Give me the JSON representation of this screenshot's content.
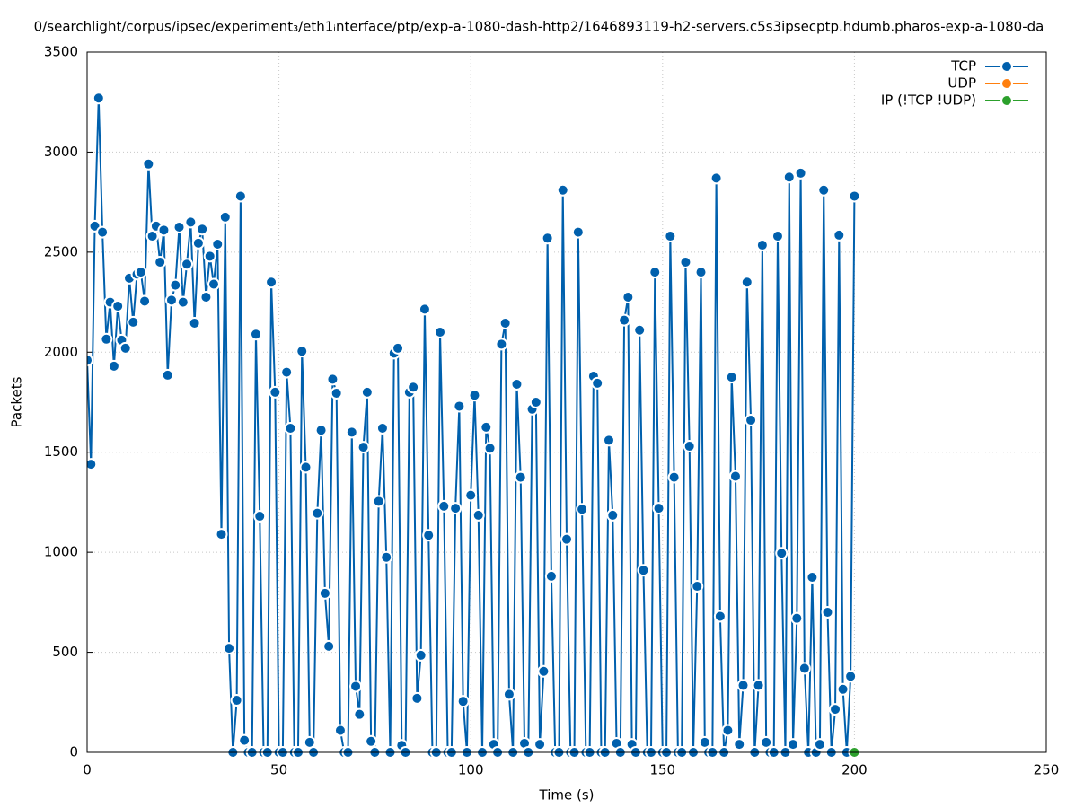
{
  "chart_data": {
    "type": "line",
    "title": "0/searchlight/corpus/ipsec/experiment₃/eth1ᵢnterface/ptp/exp-a-1080-dash-http2/1646893119-h2-servers.c5s3ipsecptp.hdumb.pharos-exp-a-1080-da",
    "x_label": "Time (s)",
    "y_label": "Packets",
    "xlim": [
      0,
      250
    ],
    "xticks": [
      0,
      50,
      100,
      150,
      200,
      250
    ],
    "ylim": [
      0,
      3500
    ],
    "yticks": [
      0,
      500,
      1000,
      1500,
      2000,
      2500,
      3000,
      3500
    ],
    "grid": true,
    "legend": "top-right",
    "series": [
      {
        "name": "TCP",
        "color": "#0060ad",
        "x": [
          0,
          1,
          2,
          3,
          4,
          5,
          6,
          7,
          8,
          9,
          10,
          11,
          12,
          13,
          14,
          15,
          16,
          17,
          18,
          19,
          20,
          21,
          22,
          23,
          24,
          25,
          26,
          27,
          28,
          29,
          30,
          31,
          32,
          33,
          34,
          35,
          36,
          37,
          38,
          39,
          40,
          41,
          42,
          43,
          44,
          45,
          46,
          47,
          48,
          49,
          50,
          51,
          52,
          53,
          54,
          55,
          56,
          57,
          58,
          59,
          60,
          61,
          62,
          63,
          64,
          65,
          66,
          67,
          68,
          69,
          70,
          71,
          72,
          73,
          74,
          75,
          76,
          77,
          78,
          79,
          80,
          81,
          82,
          83,
          84,
          85,
          86,
          87,
          88,
          89,
          90,
          91,
          92,
          93,
          94,
          95,
          96,
          97,
          98,
          99,
          100,
          101,
          102,
          103,
          104,
          105,
          106,
          107,
          108,
          109,
          110,
          111,
          112,
          113,
          114,
          115,
          116,
          117,
          118,
          119,
          120,
          121,
          122,
          123,
          124,
          125,
          126,
          127,
          128,
          129,
          130,
          131,
          132,
          133,
          134,
          135,
          136,
          137,
          138,
          139,
          140,
          141,
          142,
          143,
          144,
          145,
          146,
          147,
          148,
          149,
          150,
          151,
          152,
          153,
          154,
          155,
          156,
          157,
          158,
          159,
          160,
          161,
          162,
          163,
          164,
          165,
          166,
          167,
          168,
          169,
          170,
          171,
          172,
          173,
          174,
          175,
          176,
          177,
          178,
          179,
          180,
          181,
          182,
          183,
          184,
          185,
          186,
          187,
          188,
          189,
          190,
          191,
          192,
          193,
          194,
          195,
          196,
          197,
          198,
          199,
          200
        ],
        "values": [
          1960,
          1440,
          2630,
          3270,
          2600,
          2065,
          2250,
          1930,
          2230,
          2060,
          2020,
          2370,
          2150,
          2390,
          2400,
          2255,
          2940,
          2580,
          2630,
          2450,
          2610,
          1885,
          2260,
          2335,
          2625,
          2250,
          2440,
          2650,
          2145,
          2545,
          2615,
          2275,
          2480,
          2340,
          2540,
          1090,
          2675,
          520,
          0,
          260,
          2780,
          60,
          0,
          0,
          2090,
          1180,
          0,
          0,
          2350,
          1800,
          0,
          0,
          1900,
          1620,
          0,
          0,
          2005,
          1425,
          50,
          0,
          1195,
          1610,
          795,
          530,
          1865,
          1795,
          110,
          0,
          0,
          1600,
          330,
          190,
          1525,
          1800,
          55,
          0,
          1255,
          1620,
          975,
          0,
          1995,
          2020,
          35,
          0,
          1800,
          1825,
          270,
          485,
          2215,
          1085,
          0,
          0,
          2100,
          1230,
          0,
          0,
          1220,
          1730,
          255,
          0,
          1285,
          1785,
          1185,
          0,
          1625,
          1520,
          40,
          0,
          2040,
          2145,
          290,
          0,
          1840,
          1375,
          45,
          0,
          1715,
          1750,
          40,
          405,
          2570,
          880,
          0,
          0,
          2810,
          1065,
          0,
          0,
          2600,
          1215,
          0,
          0,
          1880,
          1845,
          0,
          0,
          1560,
          1185,
          45,
          0,
          2160,
          2275,
          40,
          0,
          2110,
          910,
          0,
          0,
          2400,
          1220,
          0,
          0,
          2580,
          1375,
          0,
          0,
          2450,
          1530,
          0,
          830,
          2400,
          50,
          0,
          0,
          2870,
          680,
          0,
          110,
          1875,
          1380,
          40,
          335,
          2350,
          1660,
          0,
          335,
          2535,
          50,
          0,
          0,
          2580,
          995,
          0,
          2875,
          40,
          670,
          2895,
          420,
          0,
          875,
          0,
          40,
          2810,
          700,
          0,
          215,
          2585,
          315,
          0,
          380,
          2780
        ]
      },
      {
        "name": "UDP",
        "color": "#ff7f0e",
        "x": [],
        "values": []
      },
      {
        "name": "IP (!TCP  !UDP)",
        "color": "#2ca02c",
        "x": [
          200
        ],
        "values": [
          0
        ]
      }
    ]
  }
}
